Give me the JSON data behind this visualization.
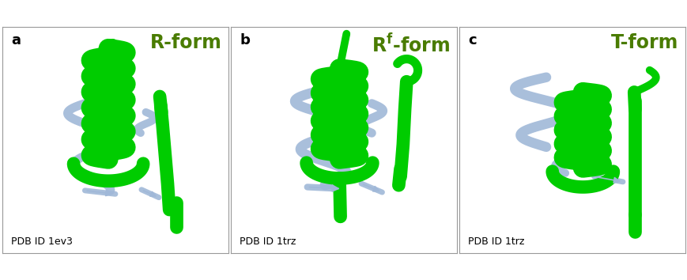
{
  "panels": [
    {
      "label": "a",
      "title": "R-form",
      "pdb": "PDB ID 1ev3",
      "title_color": "#4a7c00",
      "title_superscript": null
    },
    {
      "label": "b",
      "title_main": "R",
      "title_sup": "f",
      "title_suffix": "-form",
      "pdb": "PDB ID 1trz",
      "title_color": "#4a7c00",
      "title_superscript": "f"
    },
    {
      "label": "c",
      "title": "T-form",
      "pdb": "PDB ID 1trz",
      "title_color": "#4a7c00",
      "title_superscript": null
    }
  ],
  "background_color": "#ffffff",
  "border_color": "#999999",
  "helix_green": "#00cc00",
  "helix_blue": "#a0b8d8",
  "label_fontsize": 13,
  "title_fontsize": 17,
  "pdb_fontsize": 9
}
